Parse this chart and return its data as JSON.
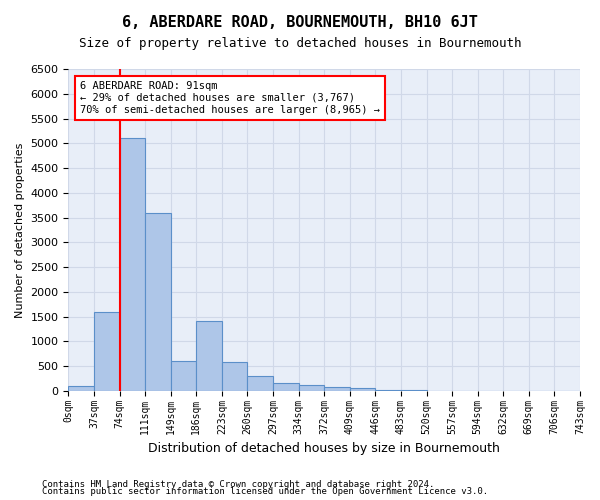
{
  "title": "6, ABERDARE ROAD, BOURNEMOUTH, BH10 6JT",
  "subtitle": "Size of property relative to detached houses in Bournemouth",
  "xlabel": "Distribution of detached houses by size in Bournemouth",
  "ylabel": "Number of detached properties",
  "footer_line1": "Contains HM Land Registry data © Crown copyright and database right 2024.",
  "footer_line2": "Contains public sector information licensed under the Open Government Licence v3.0.",
  "bin_labels": [
    "0sqm",
    "37sqm",
    "74sqm",
    "111sqm",
    "149sqm",
    "186sqm",
    "223sqm",
    "260sqm",
    "297sqm",
    "334sqm",
    "372sqm",
    "409sqm",
    "446sqm",
    "483sqm",
    "520sqm",
    "557sqm",
    "594sqm",
    "632sqm",
    "669sqm",
    "706sqm",
    "743sqm"
  ],
  "bar_values": [
    100,
    1600,
    5100,
    3600,
    600,
    1400,
    580,
    290,
    150,
    110,
    75,
    50,
    20,
    10,
    5,
    3,
    2,
    1,
    1,
    0
  ],
  "bar_color": "#aec6e8",
  "bar_edge_color": "#5b8fc9",
  "ylim": [
    0,
    6500
  ],
  "yticks": [
    0,
    500,
    1000,
    1500,
    2000,
    2500,
    3000,
    3500,
    4000,
    4500,
    5000,
    5500,
    6000,
    6500
  ],
  "red_line_x": 2,
  "annotation_title": "6 ABERDARE ROAD: 91sqm",
  "annotation_line1": "← 29% of detached houses are smaller (3,767)",
  "annotation_line2": "70% of semi-detached houses are larger (8,965) →",
  "grid_color": "#d0d8e8",
  "bg_color": "#e8eef8"
}
